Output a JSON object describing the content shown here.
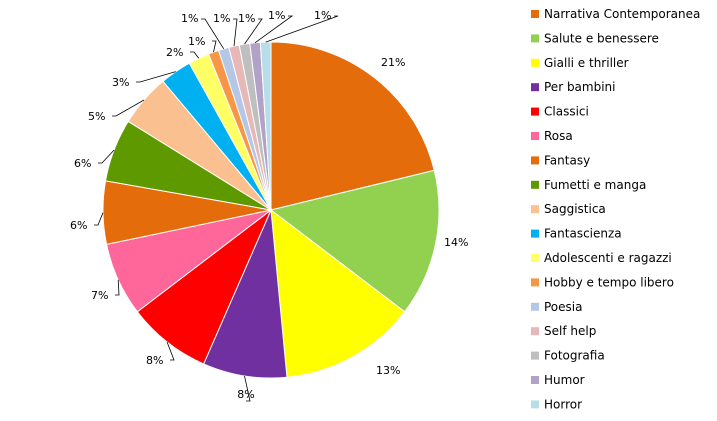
{
  "chart_data": {
    "type": "pie",
    "legend_position": "right",
    "start_angle": "top",
    "direction": "clockwise",
    "slices": [
      {
        "label": "Narrativa Contemporanea",
        "value": 21,
        "display": "21%",
        "color": "#E46C0A"
      },
      {
        "label": "Salute e benessere",
        "value": 14,
        "display": "14%",
        "color": "#92D050"
      },
      {
        "label": "Gialli e thriller",
        "value": 13,
        "display": "13%",
        "color": "#FFFF00"
      },
      {
        "label": "Per bambini",
        "value": 8,
        "display": "8%",
        "color": "#7030A0"
      },
      {
        "label": "Classici",
        "value": 8,
        "display": "8%",
        "color": "#FF0000"
      },
      {
        "label": "Rosa",
        "value": 7,
        "display": "7%",
        "color": "#FF6699"
      },
      {
        "label": "Fantasy",
        "value": 6,
        "display": "6%",
        "color": "#E46C0A"
      },
      {
        "label": "Fumetti e manga",
        "value": 6,
        "display": "6%",
        "color": "#5E9900"
      },
      {
        "label": "Saggistica",
        "value": 5,
        "display": "5%",
        "color": "#FAC090"
      },
      {
        "label": "Fantascienza",
        "value": 3,
        "display": "3%",
        "color": "#00B0F0"
      },
      {
        "label": "Adolescenti e ragazzi",
        "value": 2,
        "display": "2%",
        "color": "#FFFF66"
      },
      {
        "label": "Hobby e tempo libero",
        "value": 1,
        "display": "1%",
        "color": "#F79646"
      },
      {
        "label": "Poesia",
        "value": 1,
        "display": "1%",
        "color": "#B4C7E7"
      },
      {
        "label": "Self help",
        "value": 1,
        "display": "1%",
        "color": "#E6B9B8"
      },
      {
        "label": "Fotografia",
        "value": 1,
        "display": "1%",
        "color": "#BFBFBF"
      },
      {
        "label": "Humor",
        "value": 1,
        "display": "1%",
        "color": "#B3A2C7"
      },
      {
        "label": "Horror",
        "value": 1,
        "display": "1%",
        "color": "#B7DEE8"
      }
    ]
  }
}
